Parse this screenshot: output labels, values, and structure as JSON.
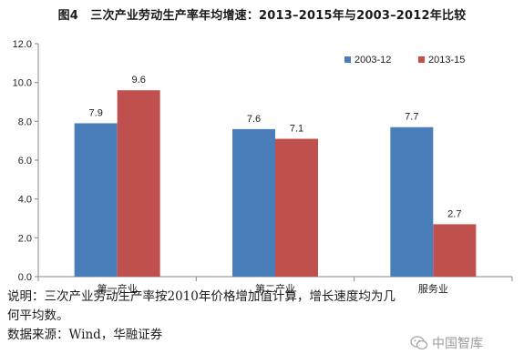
{
  "title": "图4　三次产业劳动生产率年均增速：2013–2015年与2003–2012年比较",
  "chart_data": {
    "type": "bar",
    "categories": [
      "第一产业",
      "第二产业",
      "服务业"
    ],
    "series": [
      {
        "name": "2003-12",
        "values": [
          7.9,
          7.6,
          7.7
        ],
        "color": "#4a7ebb"
      },
      {
        "name": "2013-15",
        "values": [
          9.6,
          7.1,
          2.7
        ],
        "color": "#c0504d"
      }
    ],
    "value_labels": [
      [
        "7.9",
        "7.6",
        "7.7"
      ],
      [
        "9.6",
        "7.1",
        "2.7"
      ]
    ],
    "y_ticks": [
      "0.0",
      "2.0",
      "4.0",
      "6.0",
      "8.0",
      "10.0",
      "12.0"
    ],
    "ylim": [
      0,
      12
    ],
    "grid": false,
    "legend_position": "top-right"
  },
  "notes": {
    "line1": "说明：三次产业劳动生产率按2010年价格增加值计算，增长速度均为几",
    "line2": "何平均数。",
    "line3": "数据来源：Wind，华融证券"
  },
  "watermark": {
    "text": "中国智库",
    "icon": "wechat-icon"
  }
}
